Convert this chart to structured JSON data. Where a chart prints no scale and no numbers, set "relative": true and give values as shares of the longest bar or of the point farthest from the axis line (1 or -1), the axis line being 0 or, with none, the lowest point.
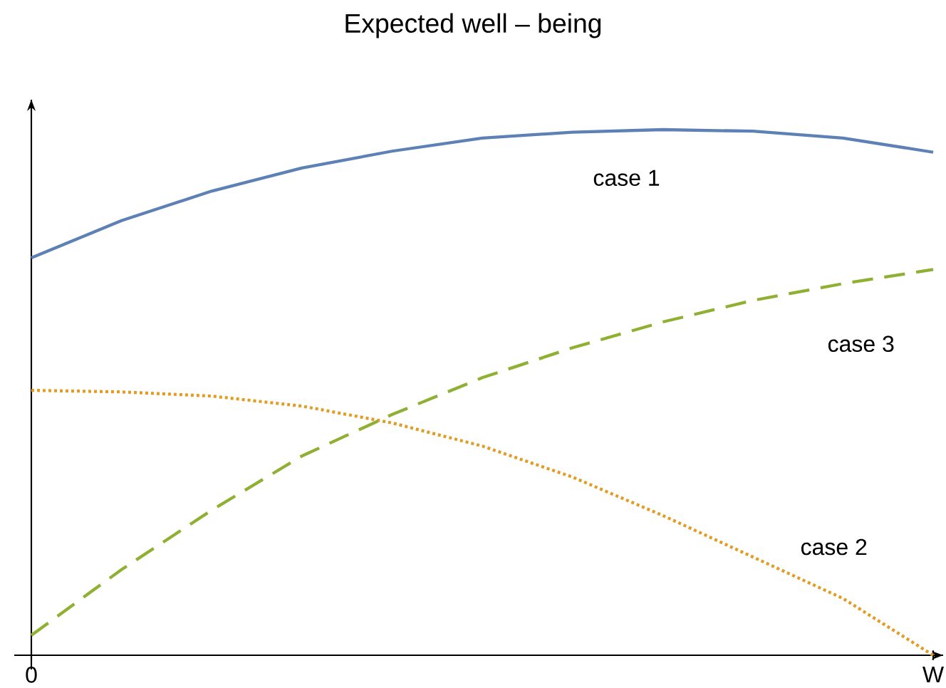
{
  "chart_data": {
    "type": "line",
    "title": "Expected well – being",
    "relative": true,
    "tick_labels": "x",
    "legend": false,
    "marker": "none",
    "categories": [
      "0",
      null,
      null,
      null,
      null,
      null,
      null,
      null,
      null,
      null,
      "W"
    ],
    "series": [
      {
        "name": "case 1",
        "color": "#5e81b5",
        "line_style": "solid",
        "values": [
          0.756,
          0.827,
          0.883,
          0.927,
          0.959,
          0.984,
          0.995,
          1,
          0.997,
          0.984,
          0.957
        ]
      },
      {
        "name": "case 2",
        "color": "#e19c24",
        "line_style": "dotted",
        "values": [
          0.504,
          0.501,
          0.493,
          0.474,
          0.442,
          0.398,
          0.339,
          0.266,
          0.187,
          0.108,
          0
        ]
      },
      {
        "name": "case 3",
        "color": "#8fb032",
        "line_style": "dashed",
        "values": [
          0.038,
          0.163,
          0.276,
          0.379,
          0.458,
          0.528,
          0.585,
          0.634,
          0.675,
          0.707,
          0.734
        ]
      }
    ]
  }
}
